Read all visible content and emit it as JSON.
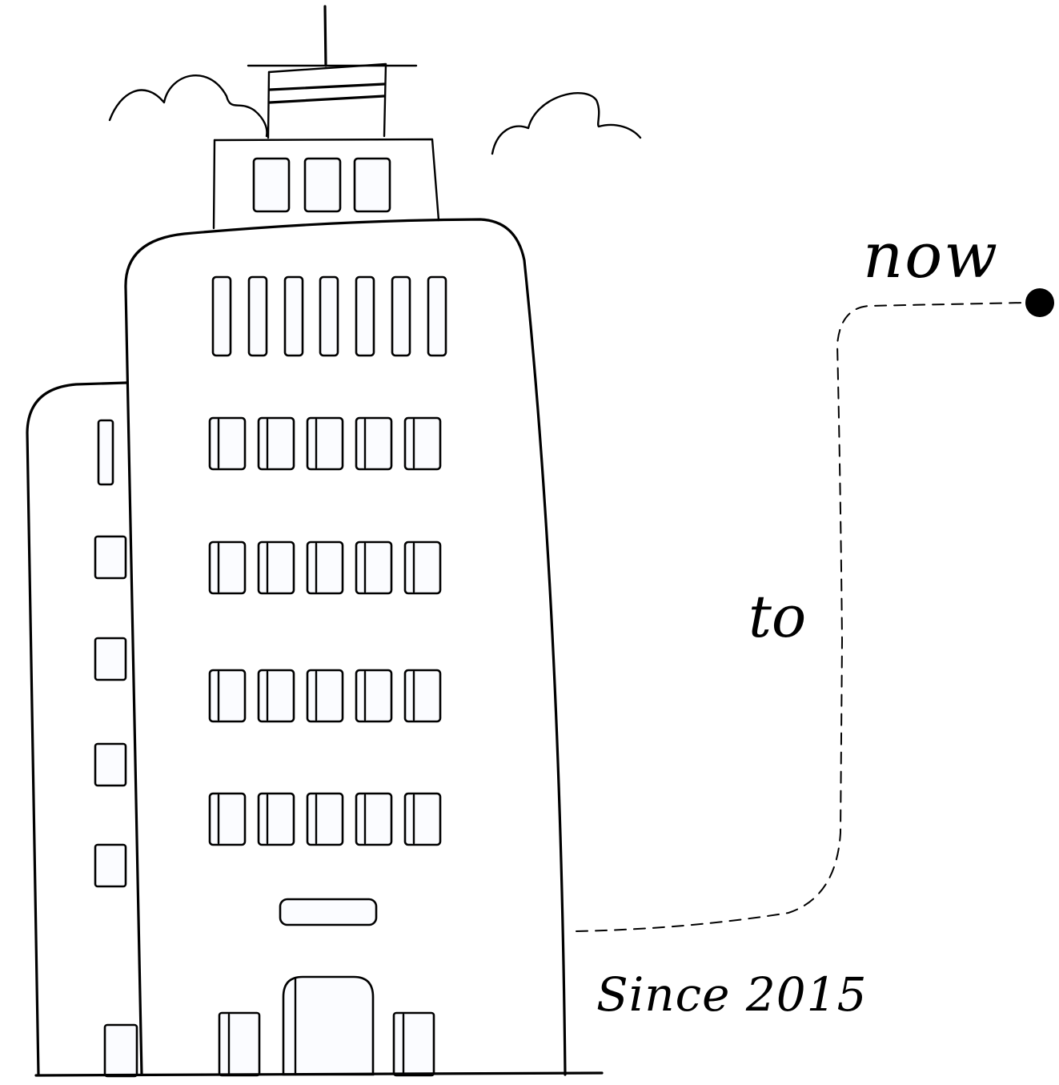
{
  "labels": {
    "now": "now",
    "to": "to",
    "since": "Since 2015"
  },
  "colors": {
    "ink": "#000000",
    "background": "#ffffff"
  },
  "icons": {
    "building": "building-icon",
    "clouds": "cloud-icon",
    "timeline_dot": "dot-icon"
  }
}
